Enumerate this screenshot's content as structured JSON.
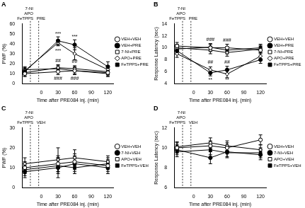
{
  "chart_data": [
    {
      "type": "line",
      "title": "A",
      "xlabel": "Time after PRE084 inj. (min)",
      "ylabel": "PWF (%)",
      "x": [
        -30,
        30,
        60,
        120
      ],
      "xlim": [
        -35,
        130
      ],
      "xticks": [
        0,
        30,
        60,
        90,
        120
      ],
      "ylim": [
        0,
        60
      ],
      "yticks": [
        0,
        10,
        20,
        30,
        40,
        50,
        60
      ],
      "grid": false,
      "legend": "right",
      "vertical_lines": [
        {
          "x": -20,
          "label": [
            "7-NI",
            "APO",
            "FeTPPS"
          ]
        },
        {
          "x": -5,
          "label": [
            "PRE"
          ]
        }
      ],
      "series": [
        {
          "name": "VEH+VEH",
          "color": "#000000",
          "marker": "open_circle",
          "values": [
            10,
            12,
            13,
            11
          ],
          "errors": [
            3,
            3,
            4,
            3
          ]
        },
        {
          "name": "VEH+PRE",
          "color": "#000000",
          "marker": "filled_circle",
          "values": [
            12,
            43,
            39,
            17
          ],
          "errors": [
            3,
            4,
            5,
            5
          ]
        },
        {
          "name": "7-NI+PRE",
          "color": "#000000",
          "marker": "open_square",
          "values": [
            11,
            16,
            15,
            12
          ],
          "errors": [
            3,
            3,
            3,
            3
          ]
        },
        {
          "name": "APO+PRE",
          "color": "#000000",
          "marker": "open_diamond",
          "values": [
            13,
            41,
            30,
            14
          ],
          "errors": [
            3,
            3,
            6,
            4
          ]
        },
        {
          "name": "FeTPPS+PRE",
          "color": "#000000",
          "marker": "filled_square",
          "values": [
            14,
            15,
            13,
            10
          ],
          "errors": [
            3,
            3,
            3,
            3
          ]
        }
      ],
      "annotations": [
        {
          "x": 30,
          "y": 50,
          "text": "***"
        },
        {
          "x": 60,
          "y": 47,
          "text": "***"
        },
        {
          "x": 30,
          "y": 33,
          "text": "***"
        },
        {
          "x": 30,
          "y": 23,
          "text": "##"
        },
        {
          "x": 60,
          "y": 22,
          "text": "##"
        },
        {
          "x": 30,
          "y": 5,
          "text": "###"
        },
        {
          "x": 60,
          "y": 5,
          "text": "###"
        }
      ]
    },
    {
      "type": "line",
      "title": "B",
      "xlabel": "Time after PRE084 inj. (min)",
      "ylabel": "Response Latency (sec)",
      "x": [
        -30,
        30,
        60,
        120
      ],
      "xlim": [
        -35,
        130
      ],
      "xticks": [
        0,
        30,
        60,
        90,
        120
      ],
      "ylim": [
        4,
        14
      ],
      "yticks": [
        4,
        6,
        8,
        10,
        12,
        14
      ],
      "grid": false,
      "legend": "right",
      "vertical_lines": [
        {
          "x": -20,
          "label": [
            "7-NI",
            "APO",
            "FeTPPS"
          ]
        },
        {
          "x": -5,
          "label": [
            "PRE"
          ]
        }
      ],
      "series": [
        {
          "name": "VEH+VEH",
          "color": "#000000",
          "marker": "open_circle",
          "values": [
            10.3,
            10,
            10,
            9.6
          ],
          "errors": [
            0.6,
            0.6,
            0.6,
            0.6
          ]
        },
        {
          "name": "VEH+PRE",
          "color": "#000000",
          "marker": "filled_circle",
          "values": [
            9.5,
            5.8,
            6.3,
            8
          ],
          "errors": [
            0.6,
            0.5,
            0.6,
            0.6
          ]
        },
        {
          "name": "7-NI+PRE",
          "color": "#000000",
          "marker": "open_square",
          "values": [
            10,
            9.6,
            9.2,
            9.8
          ],
          "errors": [
            0.6,
            0.6,
            0.6,
            0.6
          ]
        },
        {
          "name": "APO+PRE",
          "color": "#000000",
          "marker": "open_diamond",
          "values": [
            9,
            6.3,
            5.6,
            8.6
          ],
          "errors": [
            0.6,
            0.5,
            0.6,
            0.6
          ]
        },
        {
          "name": "FeTPPS+PRE",
          "color": "#000000",
          "marker": "filled_square",
          "values": [
            9.8,
            10.1,
            9.6,
            10
          ],
          "errors": [
            0.6,
            0.6,
            0.6,
            0.6
          ]
        }
      ],
      "annotations": [
        {
          "x": 30,
          "y": 11.4,
          "text": "###"
        },
        {
          "x": 60,
          "y": 11.2,
          "text": "###"
        },
        {
          "x": 30,
          "y": 7.6,
          "text": "##"
        },
        {
          "x": 60,
          "y": 7.6,
          "text": "##"
        },
        {
          "x": 30,
          "y": 4.6,
          "text": "**"
        },
        {
          "x": 60,
          "y": 4.6,
          "text": "**"
        }
      ]
    },
    {
      "type": "line",
      "title": "C",
      "xlabel": "Time after PRE084 inj. (min)",
      "ylabel": "PWF (%)",
      "x": [
        -30,
        30,
        60,
        120
      ],
      "xlim": [
        -35,
        130
      ],
      "xticks": [
        0,
        30,
        60,
        90,
        120
      ],
      "ylim": [
        0,
        30
      ],
      "yticks": [
        0,
        10,
        20,
        30
      ],
      "grid": false,
      "legend": "right",
      "vertical_lines": [
        {
          "x": -20,
          "label": [
            "7-NI",
            "APO",
            "FeTPPS"
          ]
        },
        {
          "x": -5,
          "label": [
            "VEH"
          ]
        }
      ],
      "series": [
        {
          "name": "VEH+VEH",
          "color": "#000000",
          "marker": "open_circle",
          "values": [
            10,
            12,
            13,
            11
          ],
          "errors": [
            3,
            4,
            4,
            3
          ]
        },
        {
          "name": "7-NI+VEH",
          "color": "#000000",
          "marker": "filled_circle",
          "values": [
            8,
            10,
            12,
            10
          ],
          "errors": [
            3,
            5,
            4,
            3
          ]
        },
        {
          "name": "APO+VEH",
          "color": "#000000",
          "marker": "open_square",
          "values": [
            12,
            14,
            15,
            13
          ],
          "errors": [
            3,
            6,
            4,
            3
          ]
        },
        {
          "name": "FeTPPS+VEH",
          "color": "#000000",
          "marker": "filled_square",
          "values": [
            9,
            11,
            10,
            12
          ],
          "errors": [
            3,
            4,
            3,
            3
          ]
        }
      ]
    },
    {
      "type": "line",
      "title": "D",
      "xlabel": "Time after PRE084 inj. (min)",
      "ylabel": "Response Latency (sec)",
      "x": [
        -30,
        30,
        60,
        120
      ],
      "xlim": [
        -35,
        130
      ],
      "xticks": [
        0,
        30,
        60,
        90,
        120
      ],
      "ylim": [
        6,
        12
      ],
      "yticks": [
        6,
        8,
        10,
        12
      ],
      "grid": false,
      "legend": "right",
      "vertical_lines": [
        {
          "x": -20,
          "label": [
            "7-NI",
            "APO",
            "FeTPPS"
          ]
        },
        {
          "x": -5,
          "label": [
            "VEH"
          ]
        }
      ],
      "series": [
        {
          "name": "VEH+VEH",
          "color": "#000000",
          "marker": "open_circle",
          "values": [
            10,
            10.2,
            10,
            10.8
          ],
          "errors": [
            0.5,
            0.5,
            0.5,
            0.5
          ]
        },
        {
          "name": "7-NI+VEH",
          "color": "#000000",
          "marker": "filled_circle",
          "values": [
            9.8,
            9,
            9.6,
            9.3
          ],
          "errors": [
            0.5,
            0.6,
            0.5,
            0.5
          ]
        },
        {
          "name": "APO+VEH",
          "color": "#000000",
          "marker": "open_square",
          "values": [
            10.1,
            10.5,
            10.2,
            9.8
          ],
          "errors": [
            0.5,
            0.5,
            0.5,
            0.5
          ]
        },
        {
          "name": "FeTPPS+VEH",
          "color": "#000000",
          "marker": "filled_square",
          "values": [
            9.6,
            9.8,
            9.5,
            9.5
          ],
          "errors": [
            0.5,
            0.5,
            0.5,
            0.5
          ]
        }
      ]
    }
  ]
}
